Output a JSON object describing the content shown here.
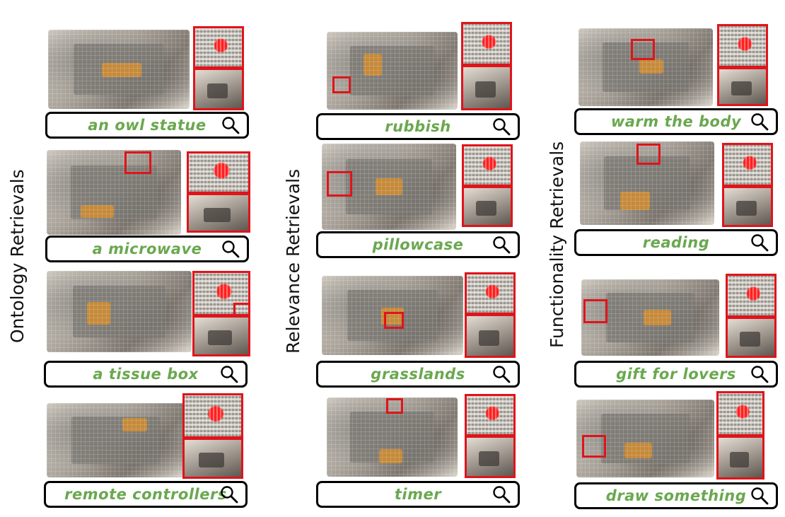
{
  "columns": [
    {
      "label": "Ontology Retrievals"
    },
    {
      "label": "Relevance Retrievals"
    },
    {
      "label": "Functionality Retrievals"
    }
  ],
  "queries": {
    "col1": [
      "an owl statue",
      "a microwave",
      "a tissue box",
      "remote controllers"
    ],
    "col2": [
      "rubbish",
      "pillowcase",
      "grasslands",
      "timer"
    ],
    "col3": [
      "warm the body",
      "reading",
      "gift for lovers",
      "draw something"
    ]
  },
  "colors": {
    "highlight": "#e0141b",
    "query_text": "#6aa84f",
    "border": "#000000"
  },
  "icons": {
    "search": "magnifier-icon"
  }
}
